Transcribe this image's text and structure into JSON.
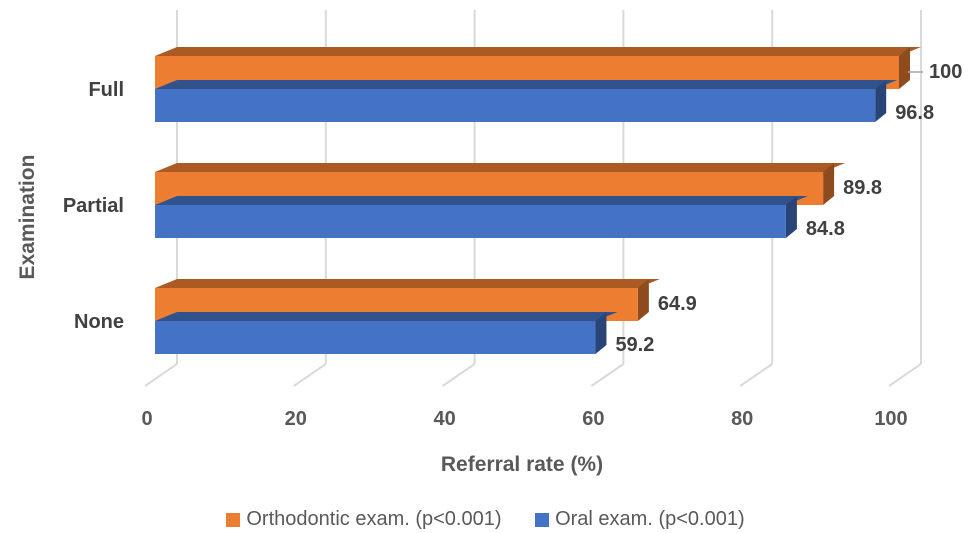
{
  "chart_data": {
    "type": "bar",
    "orientation": "horizontal",
    "style": "3d",
    "categories": [
      "Full",
      "Partial",
      "None"
    ],
    "series": [
      {
        "name": "Orthodontic exam. (p<0.001)",
        "color": "#ED7D31",
        "values": [
          100,
          89.8,
          64.9
        ]
      },
      {
        "name": "Oral exam. (p<0.001)",
        "color": "#4472C4",
        "values": [
          96.8,
          84.8,
          59.2
        ]
      }
    ],
    "data_labels": [
      [
        "100",
        "89.8",
        "64.9"
      ],
      [
        "96.8",
        "84.8",
        "59.2"
      ]
    ],
    "xlabel": "Referral rate (%)",
    "ylabel": "Examination",
    "xlim": [
      0,
      100
    ],
    "xticks": [
      "0",
      "20",
      "40",
      "60",
      "80",
      "100"
    ],
    "grid": true,
    "legend_position": "bottom"
  }
}
